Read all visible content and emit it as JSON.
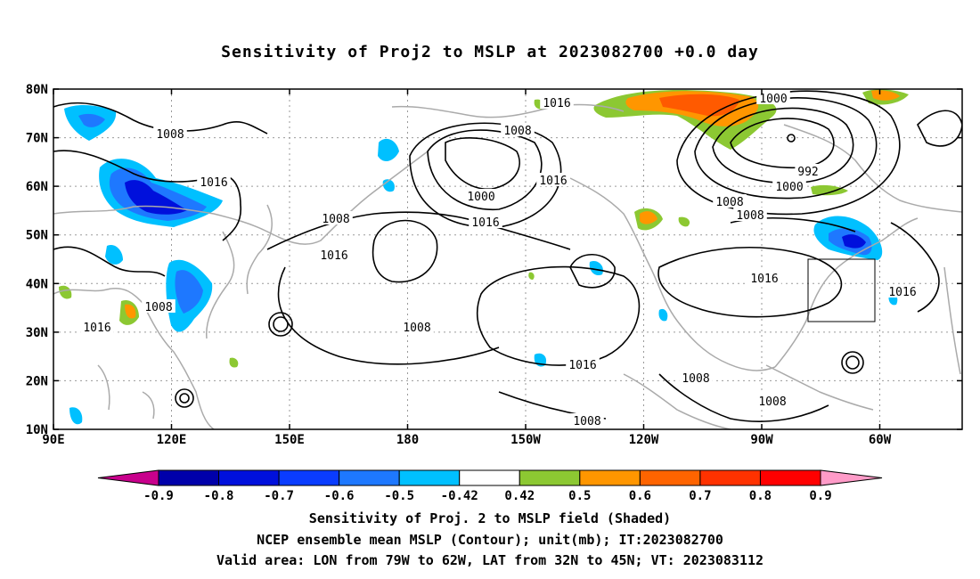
{
  "title": "Sensitivity of Proj2 to MSLP at 2023082700 +0.0 day",
  "lat_labels": [
    "80N",
    "70N",
    "60N",
    "50N",
    "40N",
    "30N",
    "20N",
    "10N"
  ],
  "lon_labels": [
    "90E",
    "120E",
    "150E",
    "180",
    "150W",
    "120W",
    "90W",
    "60W"
  ],
  "contour_labels": [
    "1016",
    "1000",
    "1008",
    "1008",
    "1016",
    "992",
    "1000",
    "1000",
    "1008",
    "1016",
    "1008",
    "1008",
    "1016",
    "1016",
    "1016",
    "1016",
    "1008",
    "1016",
    "1008",
    "1016",
    "1008",
    "1008",
    "1008"
  ],
  "colorbar": {
    "labels": [
      "-0.9",
      "-0.8",
      "-0.7",
      "-0.6",
      "-0.5",
      "-0.42",
      "0.42",
      "0.5",
      "0.6",
      "0.7",
      "0.8",
      "0.9"
    ],
    "colors": [
      "#c8008c",
      "#0000aa",
      "#0010dc",
      "#0a3cff",
      "#1e78ff",
      "#00c0ff",
      "#ffffff",
      "#8cc832",
      "#ff9600",
      "#ff6400",
      "#ff3200",
      "#ff0000",
      "#ff9bc8"
    ]
  },
  "captions": [
    "Sensitivity of Proj. 2 to MSLP field (Shaded)",
    "NCEP ensemble mean MSLP (Contour); unit(mb); IT:2023082700",
    "Valid area: LON from 79W to 62W, LAT from 32N to 45N; VT: 2023083112"
  ]
}
